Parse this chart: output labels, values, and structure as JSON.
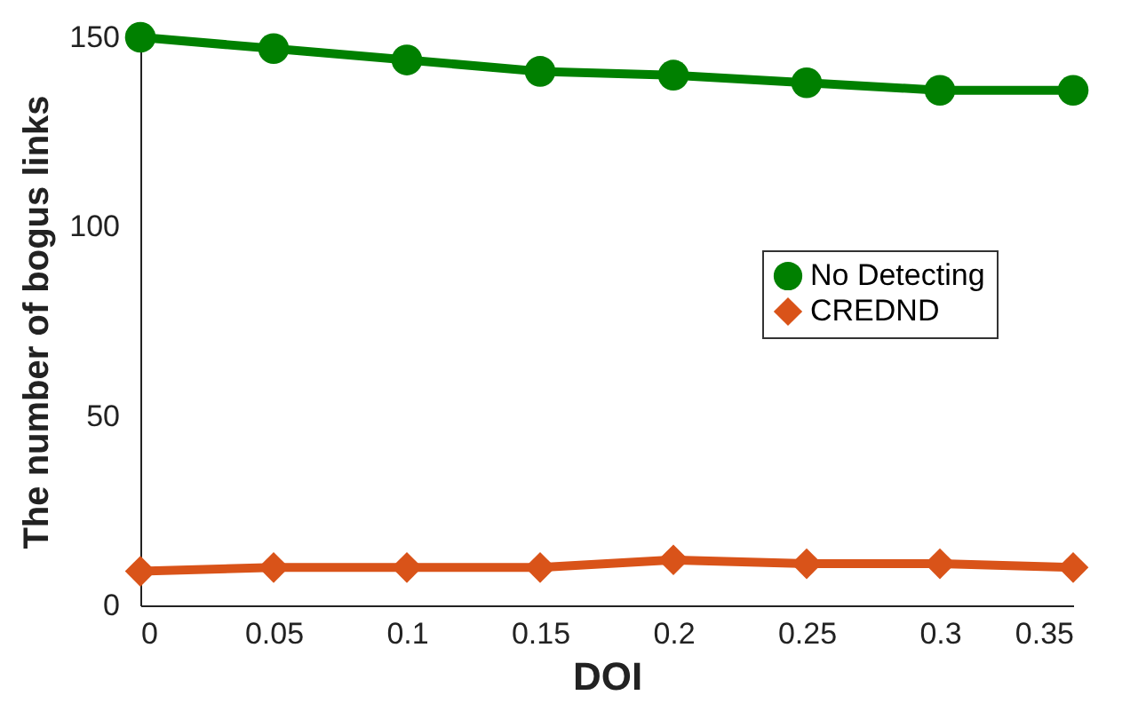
{
  "chart_data": {
    "type": "line",
    "xlabel": "DOI",
    "ylabel": "The number of bogus links",
    "x": [
      0,
      0.05,
      0.1,
      0.15,
      0.2,
      0.25,
      0.3,
      0.35
    ],
    "series": [
      {
        "name": "No Detecting",
        "color": "#008000",
        "marker": "circle",
        "values": [
          150,
          147,
          144,
          141,
          140,
          138,
          136,
          136
        ]
      },
      {
        "name": "CREDND",
        "color": "#d95319",
        "marker": "diamond",
        "values": [
          9,
          10,
          10,
          10,
          12,
          11,
          11,
          10
        ]
      }
    ],
    "xlim": [
      0,
      0.35
    ],
    "xticks": [
      0,
      0.05,
      0.1,
      0.15,
      0.2,
      0.25,
      0.3,
      0.35
    ],
    "ylim": [
      0,
      150
    ],
    "yticks": [
      0,
      50,
      100,
      150
    ],
    "grid": false,
    "legend": "right",
    "line_style": "solid"
  }
}
